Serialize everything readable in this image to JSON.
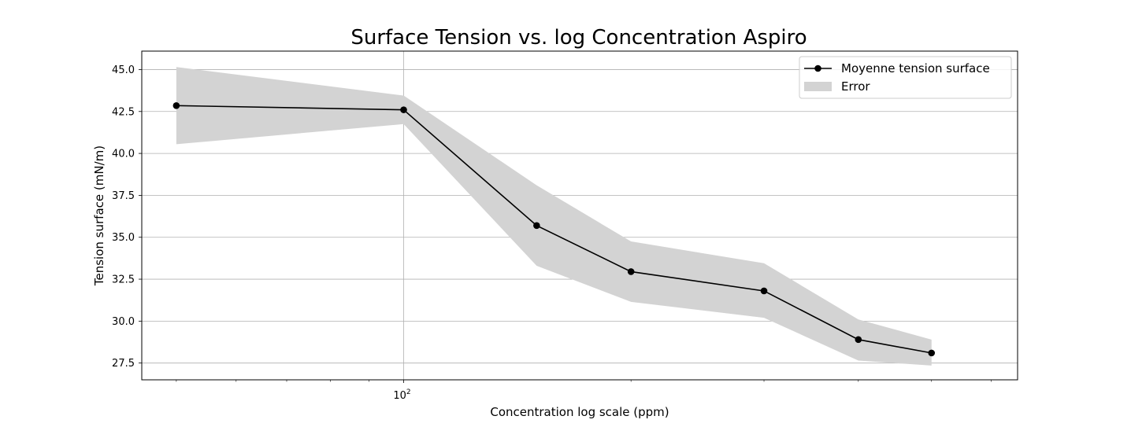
{
  "chart_data": {
    "type": "line",
    "title": "Surface Tension vs. log Concentration Aspiro",
    "xlabel": "Concentration log scale (ppm)",
    "ylabel": "Tension surface (mN/m)",
    "x_scale": "log",
    "xlim": [
      45,
      650
    ],
    "ylim": [
      26.5,
      46.1
    ],
    "grid": true,
    "x_major_ticks": [
      {
        "value": 100,
        "base": "10",
        "exponent": "2"
      }
    ],
    "x_minor_ticks": [
      50,
      60,
      70,
      80,
      90,
      200,
      300,
      400,
      500,
      600
    ],
    "y_ticks": [
      {
        "value": 27.5,
        "label": "27.5"
      },
      {
        "value": 30.0,
        "label": "30.0"
      },
      {
        "value": 32.5,
        "label": "32.5"
      },
      {
        "value": 35.0,
        "label": "35.0"
      },
      {
        "value": 37.5,
        "label": "37.5"
      },
      {
        "value": 40.0,
        "label": "40.0"
      },
      {
        "value": 42.5,
        "label": "42.5"
      },
      {
        "value": 45.0,
        "label": "45.0"
      }
    ],
    "series": [
      {
        "name": "Moyenne tension surface",
        "color": "#000000",
        "x": [
          50,
          100,
          150,
          200,
          300,
          400,
          500
        ],
        "y": [
          42.85,
          42.6,
          35.7,
          32.95,
          31.8,
          28.9,
          28.1
        ]
      }
    ],
    "error_band": {
      "name": "Error",
      "color": "#d3d3d3",
      "x": [
        50,
        100,
        150,
        200,
        300,
        400,
        500
      ],
      "upper": [
        45.15,
        43.45,
        38.1,
        34.75,
        33.45,
        30.1,
        28.9
      ],
      "lower": [
        40.55,
        41.75,
        33.3,
        31.15,
        30.2,
        27.65,
        27.35
      ]
    },
    "legend": {
      "position": "top-right",
      "entries": [
        "Moyenne tension surface",
        "Error"
      ]
    }
  }
}
